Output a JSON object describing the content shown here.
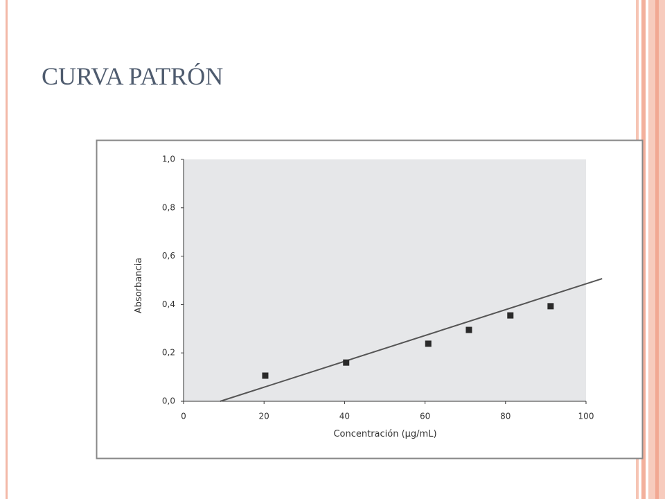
{
  "chart_data": {
    "type": "scatter",
    "title": "CURVA PATRÓN",
    "x_label": "Concentración (µg/mL)",
    "y_label": "Absorbancia",
    "x": [
      20.3,
      40.4,
      60.8,
      70.9,
      81.2,
      91.2
    ],
    "values": [
      0.106,
      0.16,
      0.238,
      0.295,
      0.355,
      0.393
    ],
    "color": "#2a2a2a",
    "fit_line": {
      "x": [
        9.1,
        104
      ],
      "y": [
        0,
        0.507
      ],
      "color": "#555555"
    },
    "xlim": [
      0,
      100
    ],
    "xticks": [
      0,
      20,
      40,
      60,
      80,
      100
    ],
    "ylim": [
      0,
      1
    ],
    "yticks": [
      {
        "value": 0,
        "label": "0,0"
      },
      {
        "value": 0.2,
        "label": "0,2"
      },
      {
        "value": 0.4,
        "label": "0,4"
      },
      {
        "value": 0.6,
        "label": "0,6"
      },
      {
        "value": 0.8,
        "label": "0,8"
      },
      {
        "value": 1,
        "label": "1,0"
      }
    ]
  }
}
